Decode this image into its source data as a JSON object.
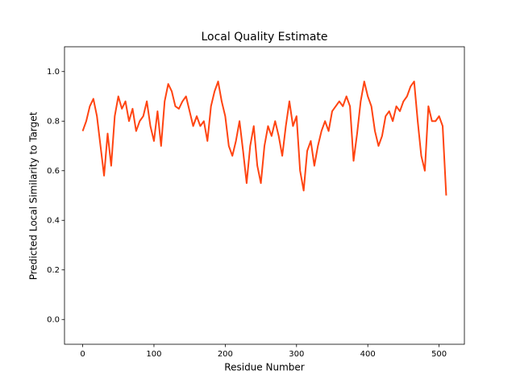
{
  "chart_data": {
    "type": "line",
    "title": "Local Quality Estimate",
    "x_label": "Residue Number",
    "y_label": "Predicted Local Similarity to Target",
    "x": [
      0,
      5,
      10,
      15,
      20,
      25,
      30,
      35,
      40,
      45,
      50,
      55,
      60,
      65,
      70,
      75,
      80,
      85,
      90,
      95,
      100,
      105,
      110,
      115,
      120,
      125,
      130,
      135,
      140,
      145,
      150,
      155,
      160,
      165,
      170,
      175,
      180,
      185,
      190,
      195,
      200,
      205,
      210,
      215,
      220,
      225,
      230,
      235,
      240,
      245,
      250,
      255,
      260,
      265,
      270,
      275,
      280,
      285,
      290,
      295,
      300,
      305,
      310,
      315,
      320,
      325,
      330,
      335,
      340,
      345,
      350,
      355,
      360,
      365,
      370,
      375,
      380,
      385,
      390,
      395,
      400,
      405,
      410,
      415,
      420,
      425,
      430,
      435,
      440,
      445,
      450,
      455,
      460,
      465,
      470,
      475,
      480,
      485,
      490,
      495,
      500,
      505,
      510
    ],
    "values": [
      0.76,
      0.8,
      0.86,
      0.89,
      0.82,
      0.7,
      0.58,
      0.75,
      0.62,
      0.82,
      0.9,
      0.85,
      0.88,
      0.8,
      0.85,
      0.76,
      0.8,
      0.82,
      0.88,
      0.78,
      0.72,
      0.84,
      0.7,
      0.88,
      0.95,
      0.92,
      0.86,
      0.85,
      0.88,
      0.9,
      0.84,
      0.78,
      0.82,
      0.78,
      0.8,
      0.72,
      0.86,
      0.92,
      0.96,
      0.88,
      0.82,
      0.7,
      0.66,
      0.72,
      0.8,
      0.68,
      0.55,
      0.7,
      0.78,
      0.62,
      0.55,
      0.7,
      0.78,
      0.74,
      0.8,
      0.74,
      0.66,
      0.78,
      0.88,
      0.78,
      0.82,
      0.6,
      0.52,
      0.68,
      0.72,
      0.62,
      0.7,
      0.76,
      0.8,
      0.76,
      0.84,
      0.86,
      0.88,
      0.86,
      0.9,
      0.86,
      0.64,
      0.75,
      0.88,
      0.96,
      0.9,
      0.86,
      0.76,
      0.7,
      0.74,
      0.82,
      0.84,
      0.8,
      0.86,
      0.84,
      0.88,
      0.9,
      0.94,
      0.96,
      0.8,
      0.66,
      0.6,
      0.86,
      0.8,
      0.8,
      0.82,
      0.78,
      0.5
    ],
    "color": "#ff4411",
    "xlim": [
      -25.5,
      535.5
    ],
    "xticks": [
      0,
      100,
      200,
      300,
      400,
      500
    ],
    "ylim": [
      -0.1,
      1.1
    ],
    "yticks": [
      {
        "value": 0,
        "label": "0.0"
      },
      0.2,
      0.4,
      0.6,
      0.8,
      {
        "value": 1,
        "label": "1.0"
      }
    ]
  }
}
